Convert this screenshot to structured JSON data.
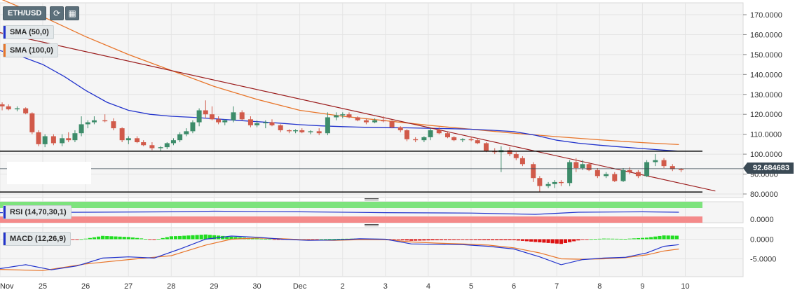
{
  "symbol": "ETH/USD",
  "indicators": {
    "sma50": {
      "label": "SMA (50,0)",
      "color": "#2233cc"
    },
    "sma100": {
      "label": "SMA (100,0)",
      "color": "#e8752a"
    },
    "rsi": {
      "label": "RSI (14,70,30,1)"
    },
    "macd": {
      "label": "MACD (12,26,9)"
    }
  },
  "current_price": "92.684683",
  "chart_data": [
    {
      "type": "candlestick",
      "x_labels": [
        "Nov",
        "25",
        "26",
        "27",
        "28",
        "29",
        "30",
        "Dec",
        "2",
        "3",
        "4",
        "5",
        "6",
        "7",
        "8",
        "9",
        "10"
      ],
      "y_ticks": [
        "170.0000",
        "160.0000",
        "150.0000",
        "140.0000",
        "130.0000",
        "120.0000",
        "110.0000",
        "100.0000",
        "90.0000",
        "80.0000"
      ],
      "ylim": [
        80,
        172
      ],
      "x_range": [
        24.0,
        10.95
      ],
      "horizontal_levels": [
        101.5,
        81.0
      ],
      "candles": [
        [
          24.05,
          125,
          126,
          122,
          124
        ],
        [
          24.2,
          124,
          125,
          122,
          122.5
        ],
        [
          24.4,
          122.5,
          124,
          121.5,
          123
        ],
        [
          24.6,
          123,
          123.5,
          120,
          120.5
        ],
        [
          24.75,
          120.5,
          121,
          110,
          111
        ],
        [
          24.9,
          111,
          112,
          104,
          105
        ],
        [
          25.05,
          105,
          110,
          103.5,
          109
        ],
        [
          25.25,
          109,
          110,
          104.5,
          105.5
        ],
        [
          25.45,
          105.5,
          110,
          104,
          108
        ],
        [
          25.6,
          108,
          111,
          106,
          107
        ],
        [
          25.75,
          107,
          112,
          106,
          110.5
        ],
        [
          25.9,
          110.5,
          119,
          109,
          115
        ],
        [
          26.05,
          115,
          117,
          113,
          116
        ],
        [
          26.2,
          116,
          119,
          115,
          117
        ],
        [
          26.45,
          117,
          120,
          116,
          116.5
        ],
        [
          26.65,
          116.5,
          118,
          112,
          113
        ],
        [
          26.85,
          113,
          113.5,
          106,
          107
        ],
        [
          27.0,
          107,
          109,
          105,
          108
        ],
        [
          27.2,
          108,
          109,
          105.5,
          106
        ],
        [
          27.35,
          106,
          107,
          104,
          104.5
        ],
        [
          27.55,
          104.5,
          106,
          102,
          103
        ],
        [
          27.75,
          103,
          104,
          101.5,
          103.5
        ],
        [
          27.9,
          103.5,
          106,
          102.5,
          105.5
        ],
        [
          28.05,
          105.5,
          108,
          104.5,
          107
        ],
        [
          28.2,
          107,
          111,
          106,
          110
        ],
        [
          28.35,
          110,
          113,
          109,
          111.5
        ],
        [
          28.5,
          111.5,
          117,
          110.5,
          116
        ],
        [
          28.65,
          116,
          123,
          114,
          122
        ],
        [
          28.8,
          122,
          127,
          118,
          120
        ],
        [
          28.95,
          120,
          124,
          117,
          117.5
        ],
        [
          29.1,
          117.5,
          119,
          115,
          116
        ],
        [
          29.25,
          116,
          117.5,
          114.5,
          117
        ],
        [
          29.45,
          117,
          124,
          116,
          121
        ],
        [
          29.65,
          121,
          122,
          117,
          117.5
        ],
        [
          29.85,
          117.5,
          119,
          113.5,
          114.5
        ],
        [
          30.0,
          114.5,
          117,
          113.5,
          115.5
        ],
        [
          30.2,
          115.5,
          117,
          113,
          116
        ],
        [
          30.35,
          116,
          117.5,
          114,
          114.5
        ],
        [
          30.55,
          114.5,
          115,
          111,
          112
        ],
        [
          30.75,
          112,
          112.5,
          110.5,
          111.5
        ],
        [
          30.9,
          111.5,
          112.5,
          110.5,
          112
        ],
        [
          31.05,
          112,
          113,
          110.5,
          111
        ],
        [
          31.25,
          111,
          112,
          110,
          111.5
        ],
        [
          31.45,
          111.5,
          113,
          109.5,
          110.5
        ],
        [
          31.65,
          110.5,
          121,
          109.5,
          118.5
        ],
        [
          31.85,
          118.5,
          121,
          117,
          119.5
        ],
        [
          32.0,
          119.5,
          121,
          118,
          120
        ],
        [
          32.15,
          120,
          121,
          118,
          118.5
        ],
        [
          32.35,
          118.5,
          119,
          116.5,
          117
        ],
        [
          32.55,
          117,
          118,
          115,
          116
        ],
        [
          32.75,
          116,
          118,
          115.5,
          117
        ],
        [
          32.95,
          117,
          119,
          116,
          116.5
        ],
        [
          33.15,
          116.5,
          117,
          113,
          113.5
        ],
        [
          33.35,
          113.5,
          114,
          111,
          112
        ],
        [
          33.5,
          112,
          112.5,
          106.5,
          107.5
        ],
        [
          33.7,
          107.5,
          108.5,
          106,
          107
        ],
        [
          33.9,
          107,
          109,
          106,
          108.5
        ],
        [
          34.05,
          108.5,
          113,
          107,
          112
        ],
        [
          34.25,
          112,
          113.5,
          110,
          110.5
        ],
        [
          34.45,
          110.5,
          111,
          108,
          108.5
        ],
        [
          34.6,
          108.5,
          109,
          106.5,
          107
        ],
        [
          34.8,
          107,
          108,
          106,
          107.5
        ],
        [
          35.0,
          107.5,
          108.5,
          106.5,
          107
        ],
        [
          35.15,
          107,
          108,
          105,
          105.5
        ],
        [
          35.35,
          105.5,
          106,
          101,
          101.5
        ],
        [
          35.55,
          101.5,
          103,
          100,
          101
        ],
        [
          35.7,
          101,
          104,
          91,
          102
        ],
        [
          35.9,
          102,
          103.5,
          99,
          100
        ],
        [
          36.05,
          100,
          101,
          97,
          98
        ],
        [
          36.2,
          98,
          99,
          94,
          95
        ],
        [
          36.45,
          95,
          96,
          86,
          88
        ],
        [
          36.6,
          88,
          89,
          81,
          84
        ],
        [
          36.8,
          84,
          86,
          83,
          85
        ],
        [
          36.95,
          85,
          87,
          83,
          86
        ],
        [
          37.1,
          86,
          87,
          84,
          85.5
        ],
        [
          37.3,
          85.5,
          97,
          84,
          96
        ],
        [
          37.45,
          96,
          98,
          91,
          93
        ],
        [
          37.6,
          93,
          97,
          92,
          95
        ],
        [
          37.75,
          95,
          96,
          91.5,
          92
        ],
        [
          37.95,
          92,
          93,
          88,
          89
        ],
        [
          38.15,
          89,
          91,
          88,
          90
        ],
        [
          38.35,
          90,
          91,
          86,
          86.5
        ],
        [
          38.55,
          86.5,
          93,
          86,
          92
        ],
        [
          38.7,
          92,
          93.5,
          90,
          91
        ],
        [
          38.9,
          91,
          92,
          88,
          89
        ],
        [
          39.1,
          89,
          97,
          88.5,
          96
        ],
        [
          39.3,
          96,
          100,
          94,
          97
        ],
        [
          39.5,
          97,
          98,
          93,
          94
        ],
        [
          39.7,
          94,
          95,
          91.5,
          92.5
        ],
        [
          39.9,
          92.5,
          93,
          91,
          92
        ]
      ],
      "sma50": [
        [
          24.0,
          152
        ],
        [
          24.5,
          149
        ],
        [
          25.0,
          145
        ],
        [
          25.5,
          139
        ],
        [
          26.0,
          132
        ],
        [
          26.5,
          126
        ],
        [
          27.0,
          122
        ],
        [
          27.5,
          120
        ],
        [
          28.0,
          119
        ],
        [
          28.5,
          118.5
        ],
        [
          29.0,
          117.8
        ],
        [
          29.5,
          117
        ],
        [
          30.0,
          116.3
        ],
        [
          30.5,
          115.6
        ],
        [
          31.0,
          114.8
        ],
        [
          31.5,
          114.2
        ],
        [
          32.0,
          113.8
        ],
        [
          32.5,
          113.5
        ],
        [
          33.0,
          113.3
        ],
        [
          33.5,
          113.2
        ],
        [
          34.0,
          113
        ],
        [
          34.5,
          112.8
        ],
        [
          35.0,
          112.5
        ],
        [
          35.5,
          112
        ],
        [
          36.0,
          111.3
        ],
        [
          36.5,
          109.5
        ],
        [
          37.0,
          107
        ],
        [
          37.5,
          105.5
        ],
        [
          38.0,
          104.5
        ],
        [
          38.5,
          103.6
        ],
        [
          39.0,
          102.8
        ],
        [
          39.5,
          102
        ],
        [
          39.85,
          101.5
        ]
      ],
      "sma100": [
        [
          24.0,
          178
        ],
        [
          25.0,
          169
        ],
        [
          26.0,
          159
        ],
        [
          27.0,
          150
        ],
        [
          28.0,
          142
        ],
        [
          29.0,
          134
        ],
        [
          30.0,
          127.5
        ],
        [
          31.0,
          122
        ],
        [
          32.0,
          119
        ],
        [
          33.0,
          116.8
        ],
        [
          34.0,
          114.5
        ],
        [
          35.0,
          112.5
        ],
        [
          36.0,
          110.5
        ],
        [
          37.0,
          108.8
        ],
        [
          38.0,
          107.2
        ],
        [
          39.0,
          105.8
        ],
        [
          39.85,
          104.8
        ]
      ],
      "trendline": [
        [
          24.0,
          161
        ],
        [
          40.7,
          81.5
        ]
      ]
    },
    {
      "type": "line",
      "title": "RSI (14,70,30,1)",
      "ylim": [
        0,
        100
      ],
      "bands": [
        30,
        70
      ],
      "y_ticks": [
        "0.0000"
      ],
      "values": [
        [
          24.0,
          48
        ],
        [
          26.0,
          50
        ],
        [
          28.0,
          52
        ],
        [
          29.0,
          55
        ],
        [
          31.0,
          52
        ],
        [
          33.0,
          48
        ],
        [
          35.0,
          46
        ],
        [
          36.5,
          40
        ],
        [
          37.5,
          50
        ],
        [
          39.0,
          52
        ],
        [
          39.85,
          50
        ]
      ]
    },
    {
      "type": "bar",
      "title": "MACD (12,26,9)",
      "ylim": [
        -8.5,
        3.6
      ],
      "y_ticks": [
        "0.0000",
        "-5.0000"
      ],
      "macd_line": [
        [
          24.0,
          -7.5
        ],
        [
          24.6,
          -6.5
        ],
        [
          25.2,
          -7.8
        ],
        [
          25.8,
          -6.8
        ],
        [
          26.4,
          -4.8
        ],
        [
          27.0,
          -4.5
        ],
        [
          27.6,
          -4.8
        ],
        [
          28.2,
          -2.5
        ],
        [
          28.8,
          0.0
        ],
        [
          29.4,
          0.8
        ],
        [
          30.0,
          0.5
        ],
        [
          30.6,
          0.0
        ],
        [
          31.2,
          -0.3
        ],
        [
          31.8,
          -0.2
        ],
        [
          32.4,
          0.1
        ],
        [
          33.0,
          0.0
        ],
        [
          33.6,
          -1.2
        ],
        [
          34.2,
          -1.3
        ],
        [
          34.8,
          -1.4
        ],
        [
          35.4,
          -1.8
        ],
        [
          36.0,
          -2.5
        ],
        [
          36.6,
          -4.5
        ],
        [
          37.1,
          -6.5
        ],
        [
          37.6,
          -5.2
        ],
        [
          38.1,
          -4.8
        ],
        [
          38.6,
          -4.6
        ],
        [
          39.1,
          -3.5
        ],
        [
          39.5,
          -1.8
        ],
        [
          39.85,
          -1.4
        ]
      ],
      "signal_line": [
        [
          24.0,
          -7.7
        ],
        [
          25.0,
          -8.0
        ],
        [
          26.0,
          -6.3
        ],
        [
          27.0,
          -5.2
        ],
        [
          28.0,
          -4.2
        ],
        [
          28.8,
          -1.5
        ],
        [
          29.4,
          0.0
        ],
        [
          30.0,
          0.3
        ],
        [
          30.6,
          0.1
        ],
        [
          31.2,
          -0.2
        ],
        [
          31.8,
          -0.3
        ],
        [
          32.4,
          -0.1
        ],
        [
          33.0,
          -0.1
        ],
        [
          33.6,
          -0.7
        ],
        [
          34.2,
          -1.0
        ],
        [
          34.8,
          -1.2
        ],
        [
          35.4,
          -1.5
        ],
        [
          36.0,
          -2.2
        ],
        [
          36.6,
          -3.5
        ],
        [
          37.1,
          -5.0
        ],
        [
          37.6,
          -5.1
        ],
        [
          38.1,
          -5.0
        ],
        [
          38.6,
          -4.7
        ],
        [
          39.1,
          -4.0
        ],
        [
          39.5,
          -3.0
        ],
        [
          39.85,
          -2.5
        ]
      ]
    }
  ]
}
